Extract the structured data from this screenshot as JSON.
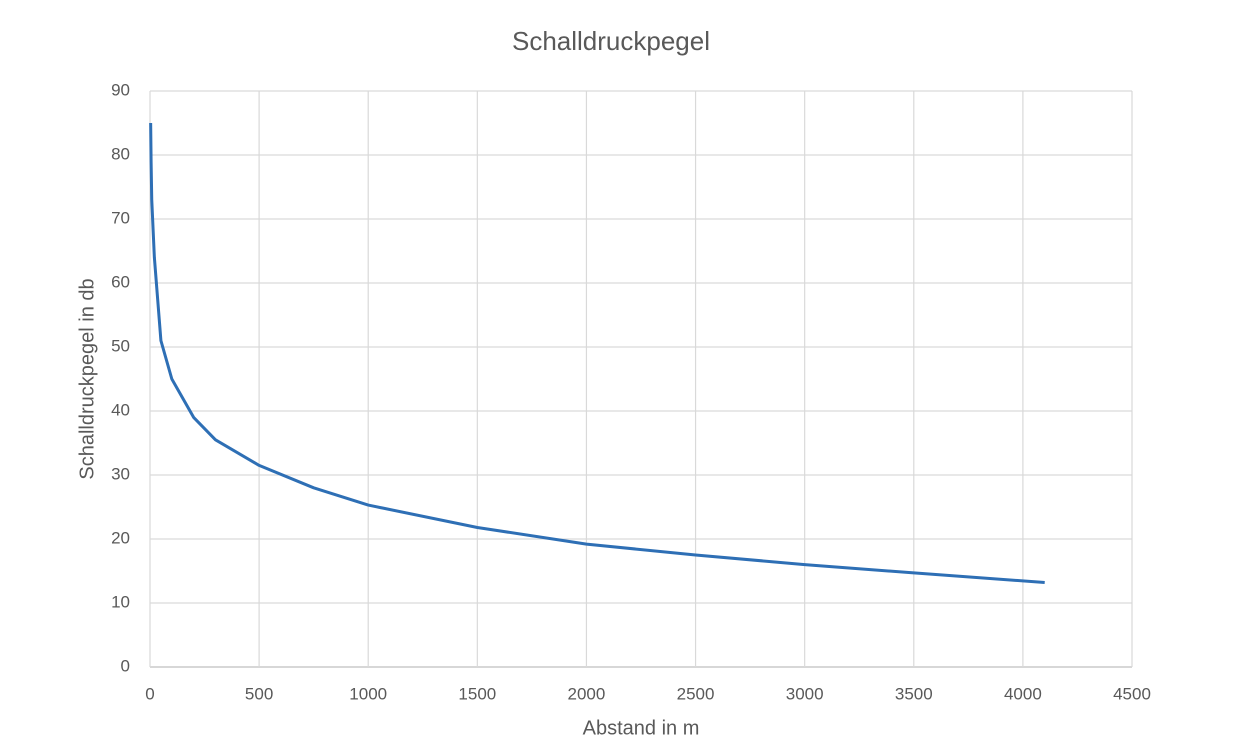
{
  "chart_data": {
    "type": "line",
    "title": "Schalldruckpegel",
    "x_label": "Abstand in m",
    "y_label": "Schalldruckpegel in db",
    "x": [
      3,
      5,
      8,
      20,
      50,
      100,
      200,
      300,
      500,
      750,
      1000,
      1500,
      2000,
      2500,
      3000,
      3500,
      4100
    ],
    "series": [
      {
        "color": "#2e6fb5",
        "values": [
          85,
          79,
          73,
          64,
          51,
          45,
          39,
          35.5,
          31.5,
          28,
          25.3,
          21.8,
          19.2,
          17.5,
          16,
          14.7,
          13.2
        ]
      }
    ],
    "xlim": [
      0,
      4500
    ],
    "xticks": [
      0,
      500,
      1000,
      1500,
      2000,
      2500,
      3000,
      3500,
      4000,
      4500
    ],
    "ylim": [
      0,
      90
    ],
    "yticks": [
      0,
      10,
      20,
      30,
      40,
      50,
      60,
      70,
      80,
      90
    ],
    "grid": true
  }
}
